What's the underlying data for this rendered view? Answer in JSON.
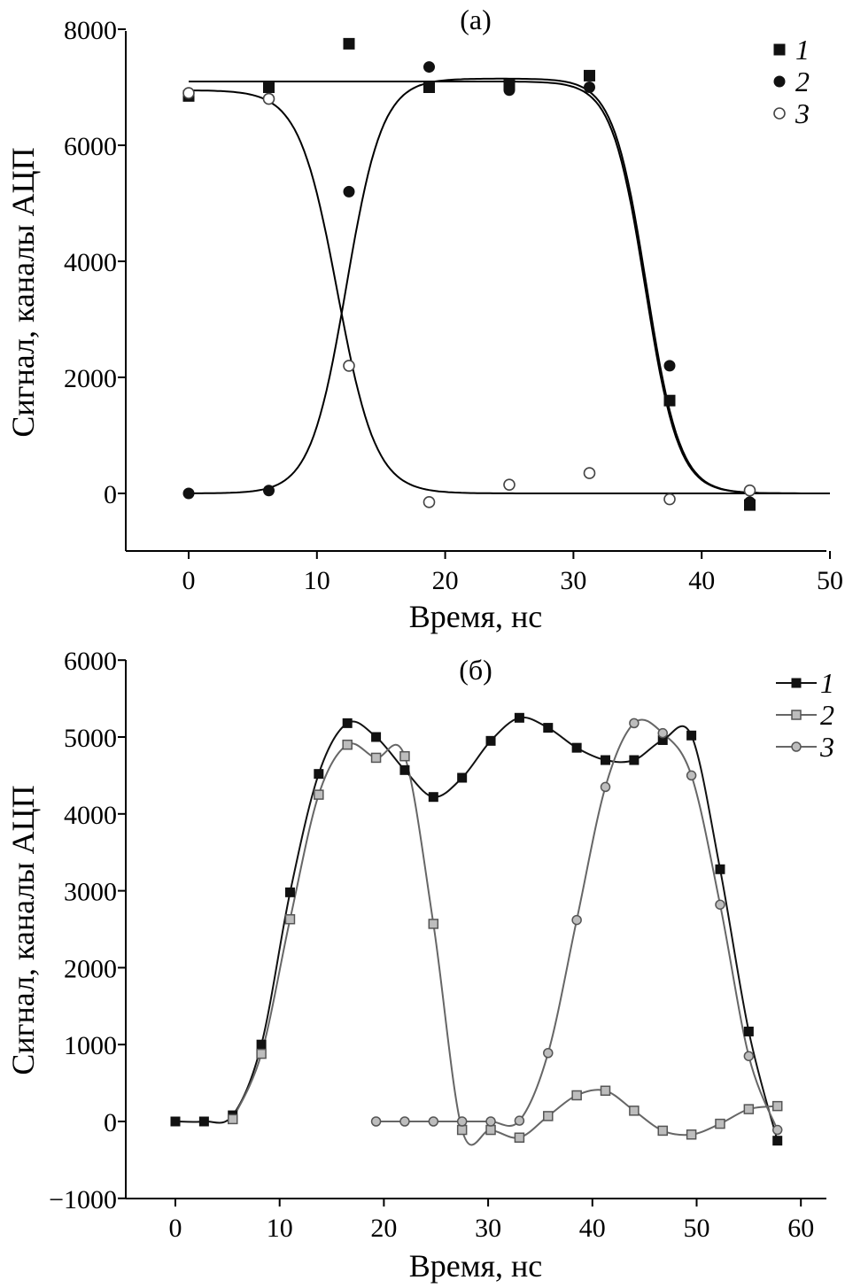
{
  "chart_data": [
    {
      "type": "scatter",
      "title": "(a)",
      "xlabel": "Время, нс",
      "ylabel": "Сигнал, каналы АЦП",
      "xlim": [
        -5,
        50
      ],
      "ylim": [
        -1000,
        8000
      ],
      "xticks": [
        "0",
        "10",
        "20",
        "30",
        "40",
        "50"
      ],
      "yticks": [
        "0",
        "2000",
        "4000",
        "6000",
        "8000"
      ],
      "legend_position": "top-right",
      "grid": false,
      "series": [
        {
          "name": "1",
          "marker": "square-filled",
          "color": "#111111",
          "x": [
            0,
            6.25,
            12.5,
            18.75,
            25,
            31.25,
            37.5,
            43.75
          ],
          "y": [
            6850,
            7000,
            7750,
            7000,
            7050,
            7200,
            1600,
            -200
          ]
        },
        {
          "name": "2",
          "marker": "circle-filled",
          "color": "#111111",
          "x": [
            0,
            6.25,
            12.5,
            18.75,
            25,
            31.25,
            37.5,
            43.75
          ],
          "y": [
            0,
            50,
            5200,
            7350,
            6950,
            7000,
            2200,
            -150
          ]
        },
        {
          "name": "3",
          "marker": "circle-open",
          "color": "#555555",
          "x": [
            0,
            6.25,
            12.5,
            18.75,
            25,
            31.25,
            37.5,
            43.75
          ],
          "y": [
            6900,
            6800,
            2200,
            -150,
            150,
            350,
            -100,
            50
          ]
        }
      ],
      "fits": [
        {
          "kind": "fall",
          "top": 7100,
          "x0": 35.6,
          "w": 1.3,
          "label": "1"
        },
        {
          "kind": "rise-fall",
          "top": 7150,
          "x0": 12.3,
          "w1": 1.4,
          "x1": 35.7,
          "w2": 1.3,
          "label": "2"
        },
        {
          "kind": "fall",
          "top": 6950,
          "x0": 11.6,
          "w": 1.5,
          "label": "3"
        }
      ]
    },
    {
      "type": "line",
      "title": "(б)",
      "xlabel": "Время, нс",
      "ylabel": "Сигнал, каналы АЦП",
      "xlim": [
        -5,
        62
      ],
      "ylim": [
        -1000,
        6000
      ],
      "xticks": [
        "0",
        "10",
        "20",
        "30",
        "40",
        "50",
        "60"
      ],
      "yticks": [
        "−1000",
        "0",
        "1000",
        "2000",
        "3000",
        "4000",
        "5000",
        "6000"
      ],
      "legend_position": "top-right",
      "grid": false,
      "series": [
        {
          "name": "1",
          "marker": "square-filled",
          "color": "#111111",
          "x": [
            0,
            2.75,
            5.5,
            8.25,
            11,
            13.75,
            16.5,
            19.25,
            22,
            24.75,
            27.5,
            30.25,
            33,
            35.75,
            38.5,
            41.25,
            44,
            46.75,
            49.5,
            52.25,
            55,
            57.75
          ],
          "y": [
            0,
            0,
            80,
            1000,
            2980,
            4520,
            5180,
            5000,
            4570,
            4220,
            4470,
            4950,
            5250,
            5120,
            4860,
            4700,
            4700,
            4960,
            5020,
            3280,
            1170,
            -250
          ]
        },
        {
          "name": "2",
          "marker": "square-gray",
          "color": "#777777",
          "x": [
            5.5,
            8.25,
            11,
            13.75,
            16.5,
            19.25,
            22,
            24.75,
            27.5,
            30.25,
            33,
            35.75,
            38.5,
            41.25,
            44,
            46.75,
            49.5,
            52.25,
            55,
            57.75
          ],
          "y": [
            30,
            880,
            2630,
            4250,
            4900,
            4730,
            4750,
            2570,
            -110,
            -110,
            -210,
            70,
            340,
            400,
            140,
            -120,
            -170,
            -30,
            160,
            200
          ]
        },
        {
          "name": "3",
          "marker": "circle-gray",
          "color": "#777777",
          "x": [
            19.25,
            22,
            24.75,
            27.5,
            30.25,
            33,
            35.75,
            38.5,
            41.25,
            44,
            46.75,
            49.5,
            52.25,
            55,
            57.75
          ],
          "y": [
            0,
            0,
            0,
            0,
            0,
            10,
            890,
            2620,
            4350,
            5180,
            5050,
            4500,
            2820,
            850,
            -110
          ]
        }
      ]
    }
  ]
}
